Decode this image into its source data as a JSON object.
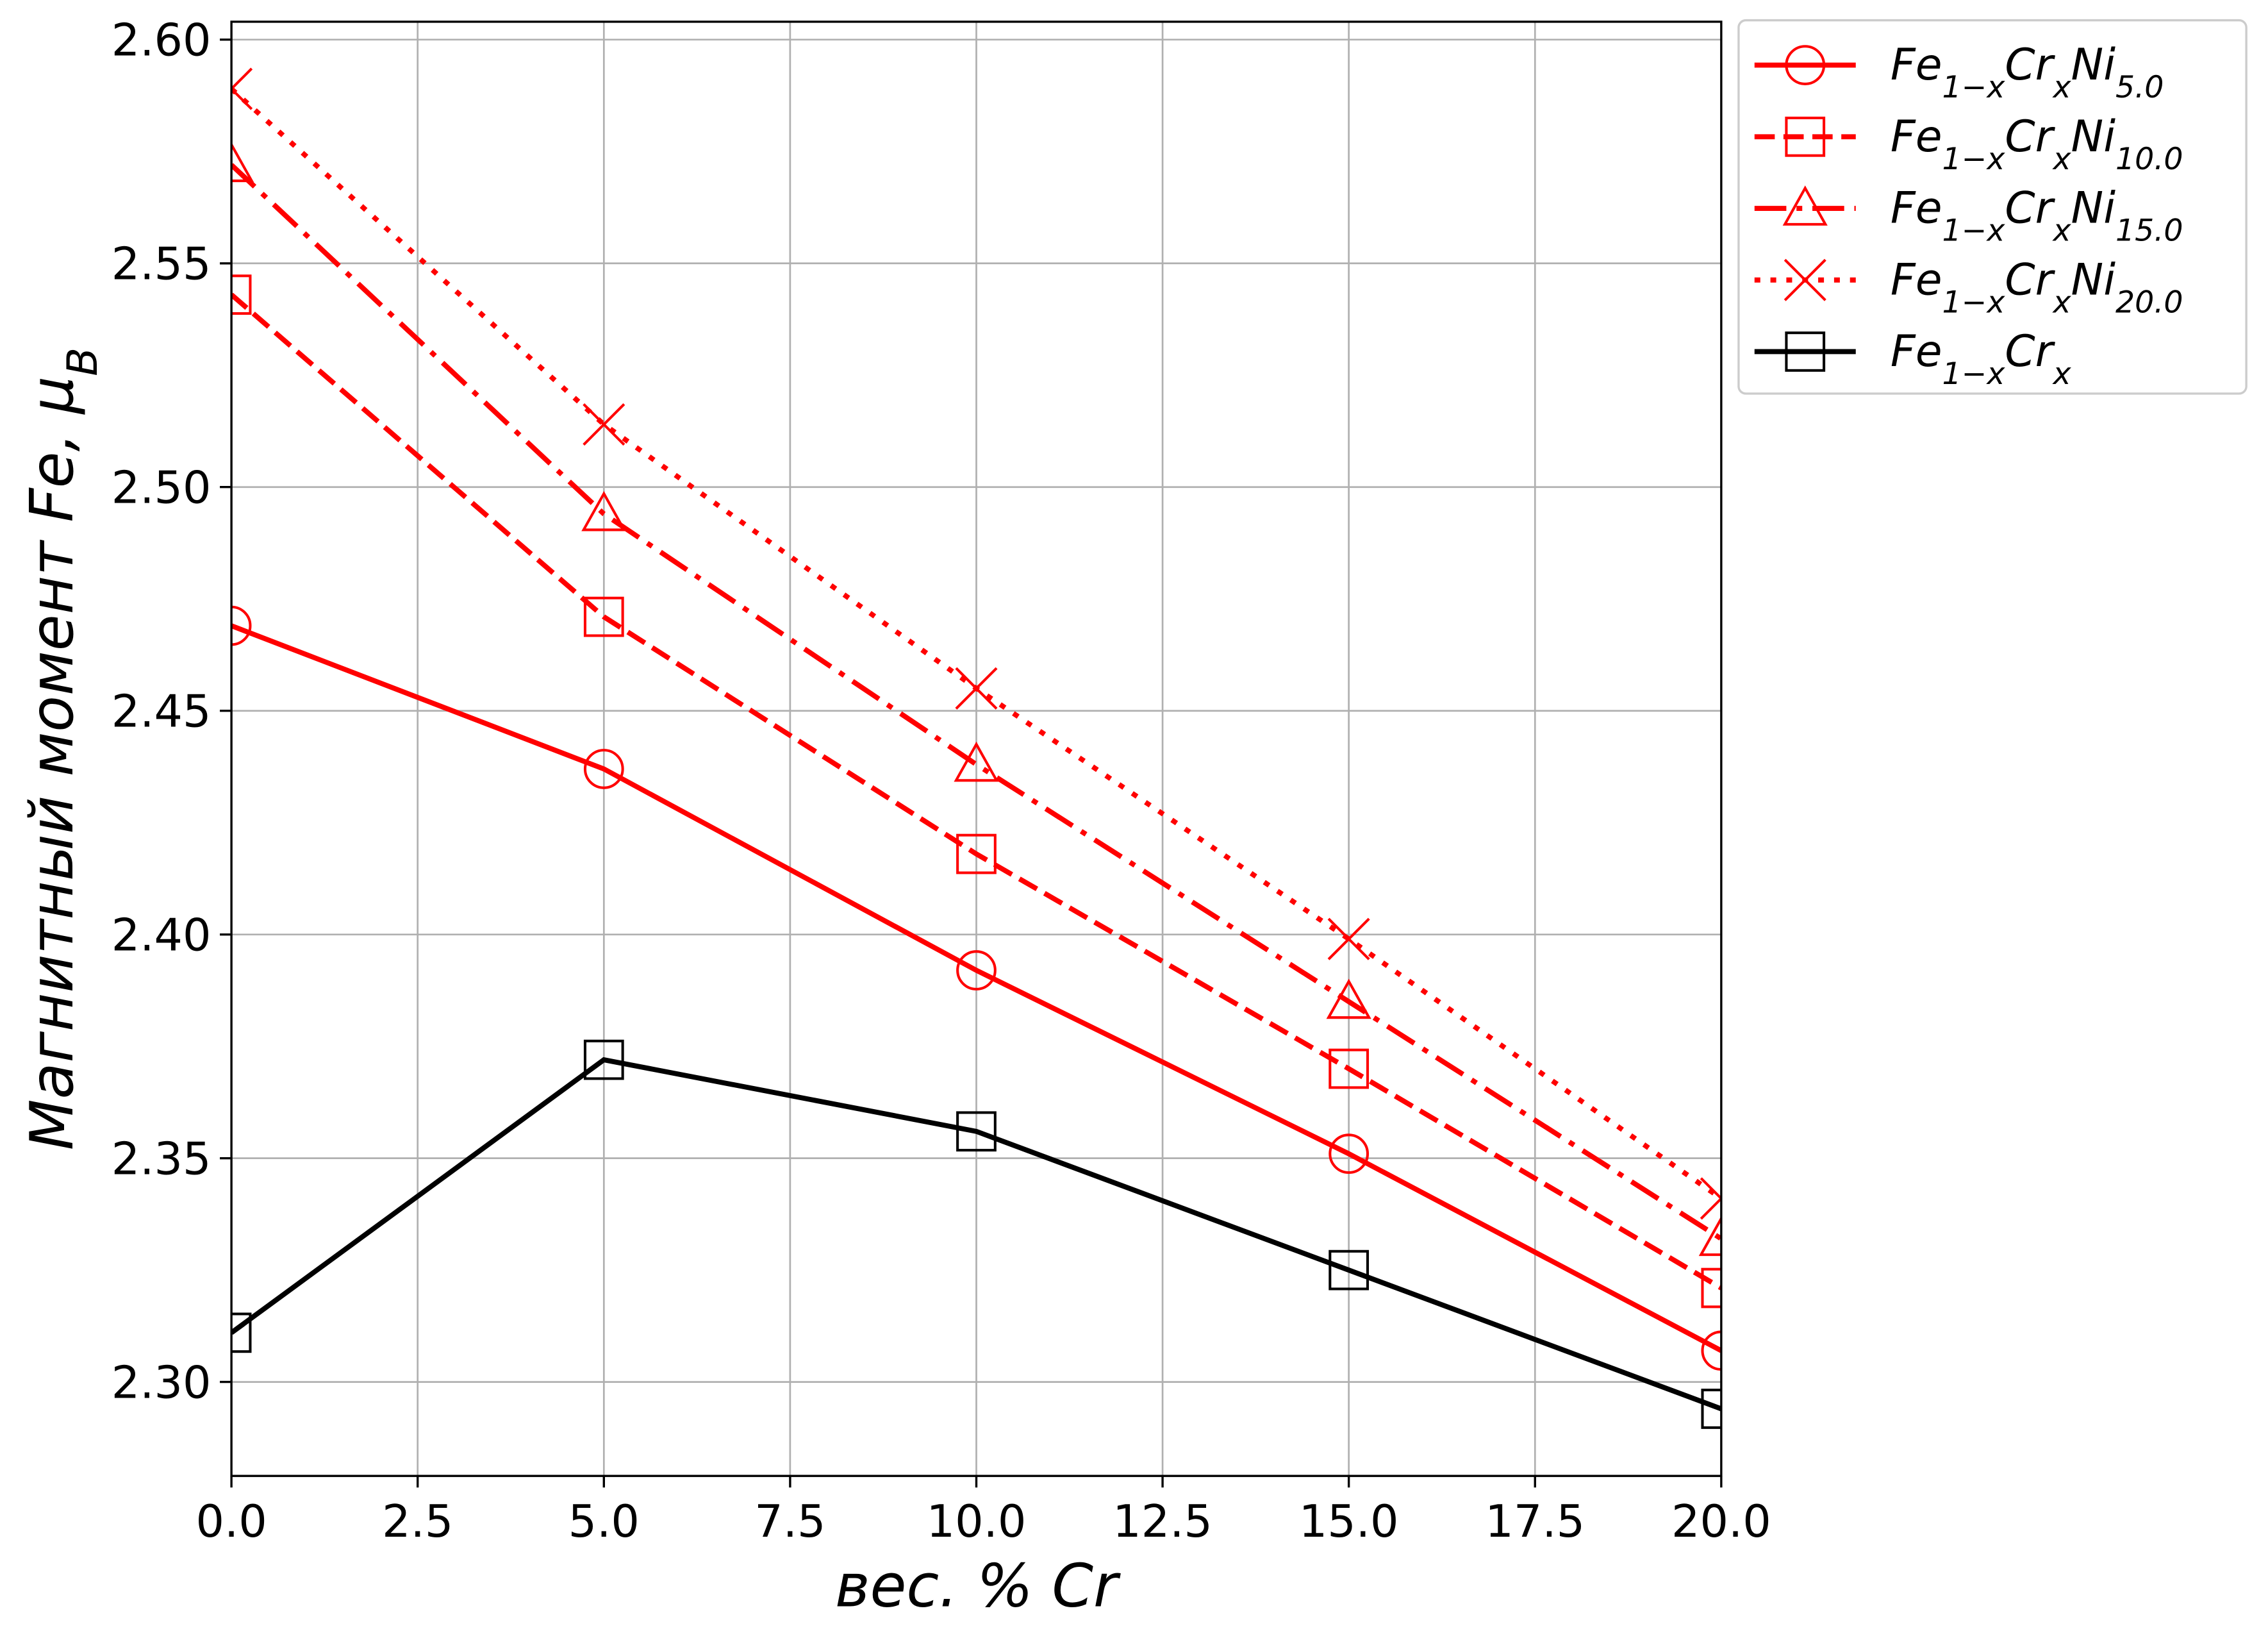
{
  "chart_data": {
    "type": "line",
    "xlabel": "вес. % Cr",
    "ylabel": "Магнитный момент Fe,  μB",
    "x": [
      0,
      5,
      10,
      15,
      20
    ],
    "xlim": [
      0,
      20
    ],
    "ylim": [
      2.279,
      2.604
    ],
    "xticks": [
      {
        "value": 0,
        "label": "0.0"
      },
      {
        "value": 2.5,
        "label": "2.5"
      },
      {
        "value": 5,
        "label": "5.0"
      },
      {
        "value": 7.5,
        "label": "7.5"
      },
      {
        "value": 10,
        "label": "10.0"
      },
      {
        "value": 12.5,
        "label": "12.5"
      },
      {
        "value": 15,
        "label": "15.0"
      },
      {
        "value": 17.5,
        "label": "17.5"
      },
      {
        "value": 20,
        "label": "20.0"
      }
    ],
    "yticks": [
      {
        "value": 2.3,
        "label": "2.30"
      },
      {
        "value": 2.35,
        "label": "2.35"
      },
      {
        "value": 2.4,
        "label": "2.40"
      },
      {
        "value": 2.45,
        "label": "2.45"
      },
      {
        "value": 2.5,
        "label": "2.50"
      },
      {
        "value": 2.55,
        "label": "2.55"
      },
      {
        "value": 2.6,
        "label": "2.60"
      }
    ],
    "grid": true,
    "legend": "outside-upper-right",
    "series": [
      {
        "name": "Fe1−xCrxNi5.0",
        "color": "#ff0000",
        "linestyle": "solid",
        "marker": "circle",
        "values": [
          2.469,
          2.437,
          2.392,
          2.351,
          2.307
        ]
      },
      {
        "name": "Fe1−xCrxNi10.0",
        "color": "#ff0000",
        "linestyle": "dashed",
        "marker": "square",
        "values": [
          2.543,
          2.471,
          2.418,
          2.37,
          2.321
        ]
      },
      {
        "name": "Fe1−xCrxNi15.0",
        "color": "#ff0000",
        "linestyle": "dashdot",
        "marker": "triangle",
        "values": [
          2.572,
          2.494,
          2.438,
          2.385,
          2.332
        ]
      },
      {
        "name": "Fe1−xCrxNi20.0",
        "color": "#ff0000",
        "linestyle": "dotted",
        "marker": "x",
        "values": [
          2.589,
          2.514,
          2.455,
          2.399,
          2.341
        ]
      },
      {
        "name": "Fe1−xCrx",
        "color": "#000000",
        "linestyle": "solid",
        "marker": "square",
        "values": [
          2.311,
          2.372,
          2.356,
          2.325,
          2.294
        ]
      }
    ]
  }
}
